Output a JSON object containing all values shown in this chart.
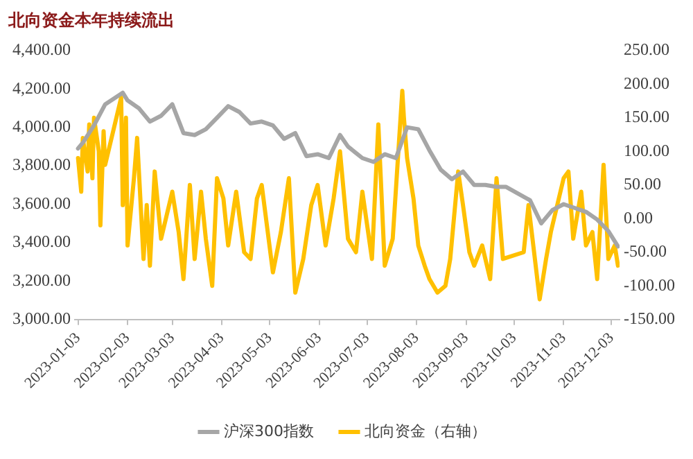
{
  "chart_data": {
    "type": "line",
    "title": "北向资金本年持续流出",
    "xlim": [
      "2023-01-01",
      "2023-12-08"
    ],
    "xticks": [
      "2023-01-03",
      "2023-02-03",
      "2023-03-03",
      "2023-04-03",
      "2023-05-03",
      "2023-06-03",
      "2023-07-03",
      "2023-08-03",
      "2023-09-03",
      "2023-10-03",
      "2023-11-03",
      "2023-12-03"
    ],
    "ylim": [
      3000,
      4400
    ],
    "yticks": [
      {
        "value": 3000,
        "label": "3,000.00"
      },
      {
        "value": 3200,
        "label": "3,200.00"
      },
      {
        "value": 3400,
        "label": "3,400.00"
      },
      {
        "value": 3600,
        "label": "3,600.00"
      },
      {
        "value": 3800,
        "label": "3,800.00"
      },
      {
        "value": 4000,
        "label": "4,000.00"
      },
      {
        "value": 4200,
        "label": "4,200.00"
      },
      {
        "value": 4400,
        "label": "4,400.00"
      }
    ],
    "y2lim": [
      -150,
      250
    ],
    "y2ticks": [
      {
        "value": -150,
        "label": "-150.00"
      },
      {
        "value": -100,
        "label": "-100.00"
      },
      {
        "value": -50,
        "label": "-50.00"
      },
      {
        "value": 0,
        "label": "0.00"
      },
      {
        "value": 50,
        "label": "50.00"
      },
      {
        "value": 100,
        "label": "100.00"
      },
      {
        "value": 150,
        "label": "150.00"
      },
      {
        "value": 200,
        "label": "200.00"
      },
      {
        "value": 250,
        "label": "250.00"
      }
    ],
    "grid": false,
    "legend": "bottom",
    "marker": "none",
    "line_style": "solid",
    "series": [
      {
        "name": "沪深300指数",
        "color": "#a6a6a6",
        "x": [
          "2023-01-03",
          "2023-01-06",
          "2023-01-13",
          "2023-01-20",
          "2023-01-31",
          "2023-02-03",
          "2023-02-10",
          "2023-02-17",
          "2023-02-24",
          "2023-03-03",
          "2023-03-10",
          "2023-03-17",
          "2023-03-24",
          "2023-03-31",
          "2023-04-07",
          "2023-04-14",
          "2023-04-21",
          "2023-04-28",
          "2023-05-05",
          "2023-05-12",
          "2023-05-19",
          "2023-05-26",
          "2023-06-02",
          "2023-06-09",
          "2023-06-16",
          "2023-06-21",
          "2023-06-30",
          "2023-07-07",
          "2023-07-14",
          "2023-07-21",
          "2023-07-28",
          "2023-08-04",
          "2023-08-11",
          "2023-08-18",
          "2023-08-25",
          "2023-09-01",
          "2023-09-08",
          "2023-09-15",
          "2023-09-22",
          "2023-09-28",
          "2023-10-13",
          "2023-10-20",
          "2023-10-27",
          "2023-11-03",
          "2023-11-10",
          "2023-11-17",
          "2023-11-24",
          "2023-12-01",
          "2023-12-07"
        ],
        "values": [
          3890,
          3920,
          4010,
          4120,
          4180,
          4140,
          4100,
          4030,
          4060,
          4120,
          3970,
          3960,
          3990,
          4050,
          4110,
          4080,
          4020,
          4030,
          4010,
          3940,
          3970,
          3850,
          3860,
          3840,
          3960,
          3900,
          3840,
          3820,
          3860,
          3840,
          4000,
          3990,
          3880,
          3780,
          3730,
          3770,
          3700,
          3700,
          3690,
          3690,
          3620,
          3500,
          3570,
          3600,
          3580,
          3560,
          3520,
          3460,
          3380
        ]
      },
      {
        "name": "北向资金（右轴）",
        "color": "#ffc000",
        "axis": "y2",
        "x": [
          "2023-01-03",
          "2023-01-05",
          "2023-01-06",
          "2023-01-09",
          "2023-01-10",
          "2023-01-12",
          "2023-01-13",
          "2023-01-16",
          "2023-01-17",
          "2023-01-19",
          "2023-01-20",
          "2023-01-30",
          "2023-01-31",
          "2023-02-02",
          "2023-02-03",
          "2023-02-07",
          "2023-02-09",
          "2023-02-13",
          "2023-02-15",
          "2023-02-17",
          "2023-02-20",
          "2023-02-24",
          "2023-02-28",
          "2023-03-03",
          "2023-03-07",
          "2023-03-10",
          "2023-03-14",
          "2023-03-17",
          "2023-03-21",
          "2023-03-24",
          "2023-03-28",
          "2023-03-31",
          "2023-04-04",
          "2023-04-07",
          "2023-04-12",
          "2023-04-17",
          "2023-04-21",
          "2023-04-25",
          "2023-04-28",
          "2023-05-05",
          "2023-05-10",
          "2023-05-15",
          "2023-05-19",
          "2023-05-24",
          "2023-05-29",
          "2023-06-02",
          "2023-06-07",
          "2023-06-12",
          "2023-06-16",
          "2023-06-21",
          "2023-06-26",
          "2023-06-30",
          "2023-07-06",
          "2023-07-10",
          "2023-07-14",
          "2023-07-19",
          "2023-07-25",
          "2023-07-26",
          "2023-07-28",
          "2023-08-01",
          "2023-08-04",
          "2023-08-08",
          "2023-08-11",
          "2023-08-16",
          "2023-08-21",
          "2023-08-24",
          "2023-08-29",
          "2023-09-01",
          "2023-09-05",
          "2023-09-08",
          "2023-09-13",
          "2023-09-18",
          "2023-09-22",
          "2023-09-26",
          "2023-10-09",
          "2023-10-12",
          "2023-10-16",
          "2023-10-19",
          "2023-10-23",
          "2023-10-26",
          "2023-10-31",
          "2023-11-03",
          "2023-11-06",
          "2023-11-09",
          "2023-11-14",
          "2023-11-17",
          "2023-11-21",
          "2023-11-24",
          "2023-11-28",
          "2023-12-01",
          "2023-12-05",
          "2023-12-07"
        ],
        "values": [
          90,
          40,
          120,
          70,
          140,
          60,
          150,
          100,
          -10,
          130,
          80,
          180,
          20,
          150,
          -40,
          60,
          120,
          -60,
          20,
          -70,
          70,
          -30,
          10,
          40,
          -20,
          -90,
          50,
          -60,
          40,
          -30,
          -100,
          60,
          30,
          -40,
          40,
          -50,
          -60,
          30,
          50,
          -80,
          -20,
          60,
          -110,
          -60,
          20,
          50,
          -40,
          30,
          100,
          -30,
          -50,
          40,
          -60,
          140,
          -70,
          -30,
          190,
          150,
          90,
          30,
          -40,
          -70,
          -90,
          -110,
          -100,
          -60,
          70,
          20,
          -50,
          -70,
          -40,
          -90,
          60,
          -60,
          -50,
          20,
          -60,
          -120,
          -60,
          -20,
          30,
          60,
          70,
          -30,
          40,
          -40,
          -20,
          -90,
          80,
          -60,
          -40,
          -70
        ]
      }
    ]
  }
}
